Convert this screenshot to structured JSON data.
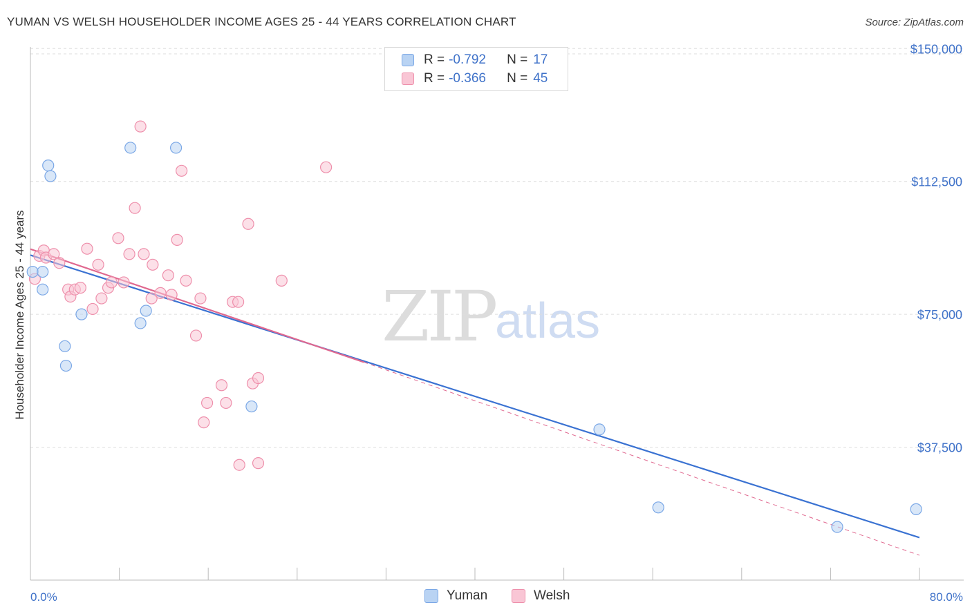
{
  "title": "YUMAN VS WELSH HOUSEHOLDER INCOME AGES 25 - 44 YEARS CORRELATION CHART",
  "source": "Source: ZipAtlas.com",
  "watermark": {
    "zip": "ZIP",
    "atlas": "atlas"
  },
  "legend": {
    "yuman": {
      "r_label": "R = ",
      "r_value": "-0.792",
      "n_label": "N = ",
      "n_value": "17"
    },
    "welsh": {
      "r_label": "R = ",
      "r_value": "-0.366",
      "n_label": "N = ",
      "n_value": "45"
    }
  },
  "colors": {
    "yuman_fill": "#b9d3f3",
    "yuman_stroke": "#7aa7e6",
    "yuman_line": "#3a72d2",
    "welsh_fill": "#f9c6d5",
    "welsh_stroke": "#ee8fab",
    "welsh_line": "#e0688f",
    "grid": "#dddddd",
    "axis_text": "#3f72c9"
  },
  "chart_data": {
    "type": "scatter",
    "title": "YUMAN VS WELSH HOUSEHOLDER INCOME AGES 25 - 44 YEARS CORRELATION CHART",
    "xlabel": "",
    "ylabel": "Householder Income Ages 25 - 44 years",
    "xlim": [
      0,
      80
    ],
    "ylim": [
      0,
      152000
    ],
    "x_tick_labels": [
      "0.0%",
      "80.0%"
    ],
    "y_ticks": [
      37500,
      75000,
      112500,
      150000
    ],
    "y_tick_labels": [
      "$37,500",
      "$75,000",
      "$112,500",
      "$150,000"
    ],
    "grid": true,
    "legend_placement": "bottom-center",
    "series": [
      {
        "name": "Yuman",
        "points": [
          [
            0.2,
            87000
          ],
          [
            1.1,
            87000
          ],
          [
            1.1,
            82000
          ],
          [
            1.6,
            117000
          ],
          [
            1.8,
            114000
          ],
          [
            3.1,
            66000
          ],
          [
            3.2,
            60500
          ],
          [
            4.6,
            75000
          ],
          [
            9.0,
            122000
          ],
          [
            9.9,
            72500
          ],
          [
            10.4,
            76000
          ],
          [
            13.1,
            122000
          ],
          [
            19.9,
            49000
          ],
          [
            51.2,
            42500
          ],
          [
            56.5,
            20500
          ],
          [
            72.6,
            15000
          ],
          [
            79.7,
            20000
          ]
        ],
        "trend": {
          "x": [
            0,
            80
          ],
          "y": [
            91700,
            12000
          ]
        }
      },
      {
        "name": "Welsh",
        "points": [
          [
            0.4,
            85000
          ],
          [
            0.8,
            91500
          ],
          [
            1.2,
            93000
          ],
          [
            1.4,
            91000
          ],
          [
            2.1,
            92000
          ],
          [
            2.6,
            89500
          ],
          [
            3.4,
            82000
          ],
          [
            3.6,
            80000
          ],
          [
            4.0,
            82000
          ],
          [
            4.5,
            82500
          ],
          [
            5.1,
            93500
          ],
          [
            5.6,
            76500
          ],
          [
            6.1,
            89000
          ],
          [
            6.4,
            79500
          ],
          [
            7.0,
            82500
          ],
          [
            7.3,
            84000
          ],
          [
            7.9,
            96500
          ],
          [
            8.4,
            84000
          ],
          [
            8.9,
            92000
          ],
          [
            9.4,
            105000
          ],
          [
            10.2,
            92000
          ],
          [
            10.9,
            79500
          ],
          [
            11.0,
            89000
          ],
          [
            11.7,
            81000
          ],
          [
            12.4,
            86000
          ],
          [
            12.7,
            80500
          ],
          [
            13.2,
            96000
          ],
          [
            13.6,
            115500
          ],
          [
            14.0,
            84500
          ],
          [
            14.9,
            69000
          ],
          [
            15.3,
            79500
          ],
          [
            15.6,
            44500
          ],
          [
            15.9,
            50000
          ],
          [
            17.2,
            55000
          ],
          [
            17.6,
            50000
          ],
          [
            18.2,
            78500
          ],
          [
            18.7,
            78500
          ],
          [
            19.6,
            100500
          ],
          [
            20.0,
            55500
          ],
          [
            20.5,
            57000
          ],
          [
            18.8,
            32500
          ],
          [
            20.5,
            33000
          ],
          [
            22.6,
            84500
          ],
          [
            9.9,
            128000
          ],
          [
            26.6,
            116500
          ]
        ],
        "trend": {
          "x": [
            0,
            30
          ],
          "y": [
            93400,
            61500
          ]
        },
        "trend_extension_dashed": {
          "x": [
            30,
            80
          ],
          "y": [
            61500,
            7000
          ]
        }
      }
    ]
  }
}
